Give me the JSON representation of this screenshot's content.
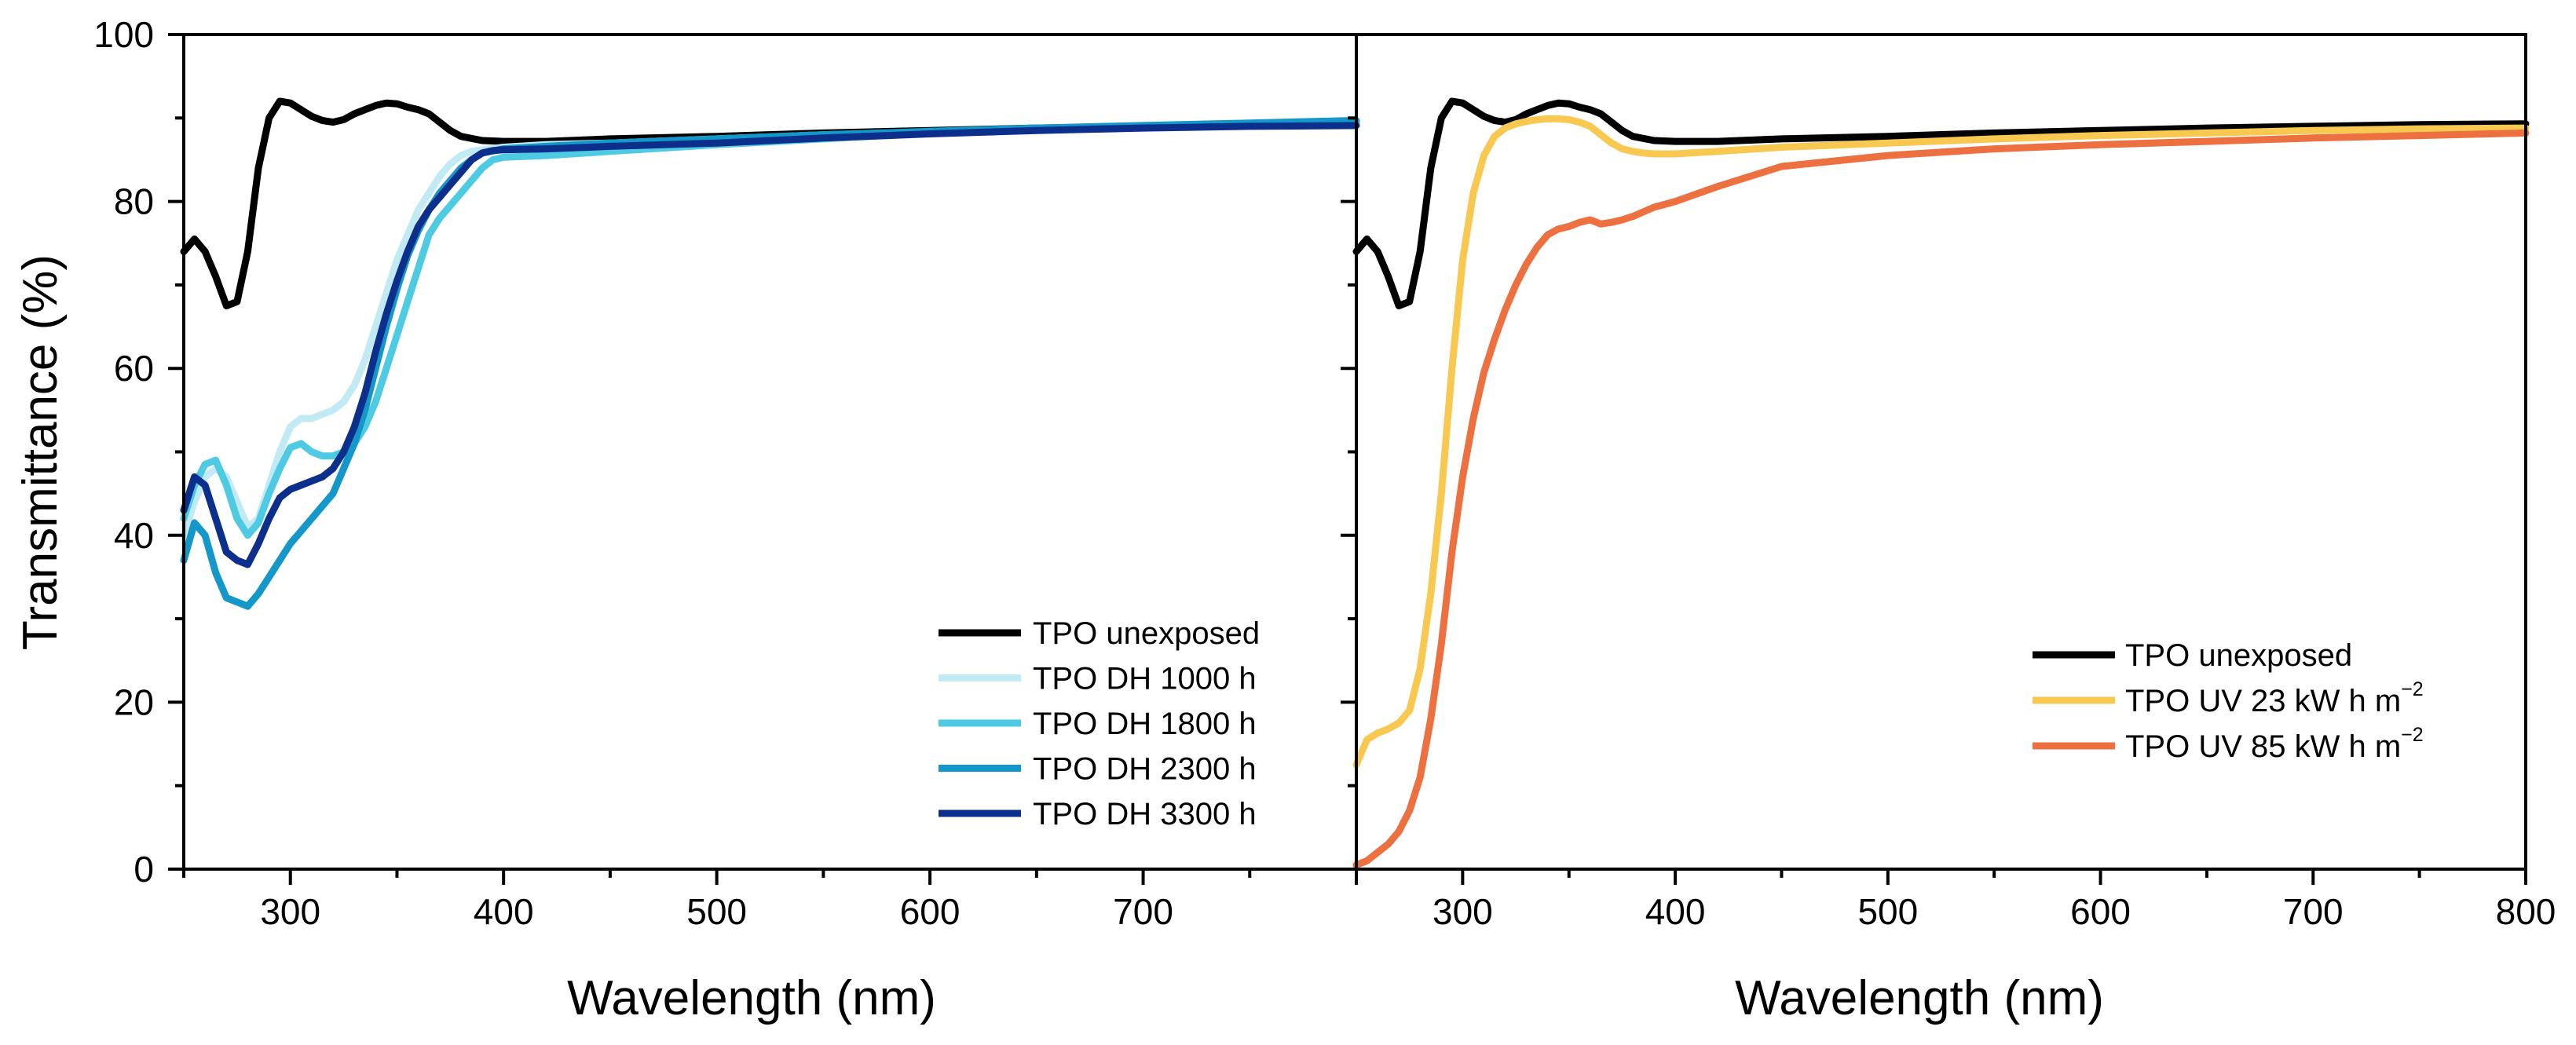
{
  "chart_data": [
    {
      "type": "line",
      "panel": "left",
      "xlabel": "Wavelength (nm)",
      "ylabel": "Transmittance (%)",
      "xlim": [
        250,
        800
      ],
      "ylim": [
        0,
        100
      ],
      "xticks": [
        300,
        400,
        500,
        600,
        700
      ],
      "yticks": [
        0,
        20,
        40,
        60,
        80,
        100
      ],
      "legend_position": "bottom-right",
      "series": [
        {
          "name": "TPO unexposed",
          "color": "#000000",
          "x": [
            250,
            255,
            260,
            265,
            270,
            275,
            280,
            285,
            290,
            295,
            300,
            305,
            310,
            315,
            320,
            325,
            330,
            335,
            340,
            345,
            350,
            355,
            360,
            365,
            370,
            375,
            380,
            390,
            400,
            420,
            450,
            500,
            550,
            600,
            650,
            700,
            750,
            800
          ],
          "y": [
            74,
            75.5,
            74,
            71,
            67.5,
            68,
            74,
            84,
            90,
            92,
            91.8,
            91,
            90.2,
            89.7,
            89.5,
            89.8,
            90.5,
            91,
            91.5,
            91.8,
            91.7,
            91.3,
            91,
            90.5,
            89.5,
            88.5,
            87.8,
            87.3,
            87.2,
            87.2,
            87.5,
            87.8,
            88.2,
            88.5,
            88.8,
            89,
            89.2,
            89.3
          ]
        },
        {
          "name": "TPO DH 1000 h",
          "color": "#c2eaf5",
          "x": [
            250,
            255,
            260,
            265,
            270,
            275,
            280,
            285,
            290,
            295,
            300,
            305,
            310,
            315,
            320,
            325,
            330,
            335,
            340,
            345,
            350,
            355,
            360,
            365,
            370,
            375,
            380,
            385,
            390,
            400,
            420,
            450,
            500,
            550,
            600,
            650,
            700,
            750,
            800
          ],
          "y": [
            40,
            44,
            47,
            48,
            47,
            44,
            41,
            42,
            46,
            50,
            53,
            54,
            54,
            54.5,
            55,
            56,
            58,
            61,
            65,
            69,
            73,
            76,
            79,
            81,
            83,
            84.5,
            85.5,
            86,
            86.2,
            86.5,
            86.8,
            87,
            87.5,
            88,
            88.3,
            88.6,
            88.9,
            89.1,
            89.3
          ]
        },
        {
          "name": "TPO DH 1800 h",
          "color": "#4ecbe3",
          "x": [
            250,
            255,
            260,
            265,
            270,
            275,
            280,
            285,
            290,
            295,
            300,
            305,
            310,
            315,
            320,
            325,
            330,
            335,
            340,
            345,
            350,
            355,
            360,
            365,
            370,
            375,
            380,
            385,
            390,
            395,
            400,
            420,
            450,
            500,
            550,
            600,
            650,
            700,
            750,
            800
          ],
          "y": [
            42,
            46,
            48.5,
            49,
            46,
            42,
            40,
            41.5,
            45,
            48,
            50.5,
            51,
            50,
            49.5,
            49.5,
            50,
            51,
            53,
            56,
            60,
            64,
            68,
            72,
            76,
            78,
            79.5,
            81,
            82.5,
            84,
            85,
            85.3,
            85.5,
            86,
            86.8,
            87.5,
            88.2,
            88.6,
            89,
            89.3,
            89.5
          ]
        },
        {
          "name": "TPO DH 2300 h",
          "color": "#1497c9",
          "x": [
            250,
            255,
            260,
            265,
            270,
            275,
            280,
            285,
            290,
            295,
            300,
            305,
            310,
            315,
            320,
            325,
            330,
            335,
            340,
            345,
            350,
            355,
            360,
            365,
            370,
            375,
            380,
            385,
            390,
            400,
            420,
            450,
            500,
            550,
            600,
            650,
            700,
            750,
            800
          ],
          "y": [
            37,
            41.5,
            40,
            35.5,
            32.5,
            32,
            31.5,
            33,
            35,
            37,
            39,
            40.5,
            42,
            43.5,
            45,
            48,
            51,
            55,
            60,
            65,
            69.5,
            73.5,
            76.5,
            79,
            81,
            82.5,
            84,
            85,
            85.8,
            86.3,
            86.6,
            87,
            87.5,
            88,
            88.4,
            88.8,
            89.1,
            89.4,
            89.7
          ]
        },
        {
          "name": "TPO DH 3300 h",
          "color": "#0d2f8c",
          "x": [
            250,
            255,
            260,
            265,
            270,
            275,
            280,
            285,
            290,
            295,
            300,
            305,
            310,
            315,
            320,
            325,
            330,
            335,
            340,
            345,
            350,
            355,
            360,
            365,
            370,
            375,
            380,
            385,
            390,
            395,
            400,
            420,
            450,
            500,
            550,
            600,
            650,
            700,
            750,
            800
          ],
          "y": [
            43,
            47,
            46,
            42,
            38,
            37,
            36.5,
            39,
            42,
            44.5,
            45.5,
            46,
            46.5,
            47,
            48,
            50,
            53,
            57,
            62,
            66.5,
            70.5,
            74,
            77,
            79,
            80.5,
            82,
            83.5,
            85,
            85.8,
            86.1,
            86.2,
            86.3,
            86.6,
            87,
            87.6,
            88.1,
            88.5,
            88.8,
            89,
            89.1
          ]
        }
      ]
    },
    {
      "type": "line",
      "panel": "right",
      "xlabel": "Wavelength (nm)",
      "ylabel": "",
      "xlim": [
        250,
        800
      ],
      "ylim": [
        0,
        100
      ],
      "xticks": [
        300,
        400,
        500,
        600,
        700,
        800
      ],
      "yticks": [
        0,
        20,
        40,
        60,
        80,
        100
      ],
      "legend_position": "center-right",
      "series": [
        {
          "name": "TPO unexposed",
          "color": "#000000",
          "x": [
            250,
            255,
            260,
            265,
            270,
            275,
            280,
            285,
            290,
            295,
            300,
            305,
            310,
            315,
            320,
            325,
            330,
            335,
            340,
            345,
            350,
            355,
            360,
            365,
            370,
            375,
            380,
            390,
            400,
            420,
            450,
            500,
            550,
            600,
            650,
            700,
            750,
            800
          ],
          "y": [
            74,
            75.5,
            74,
            71,
            67.5,
            68,
            74,
            84,
            90,
            92,
            91.8,
            91,
            90.2,
            89.7,
            89.5,
            89.8,
            90.5,
            91,
            91.5,
            91.8,
            91.7,
            91.3,
            91,
            90.5,
            89.5,
            88.5,
            87.8,
            87.3,
            87.2,
            87.2,
            87.5,
            87.8,
            88.2,
            88.5,
            88.8,
            89,
            89.2,
            89.3
          ]
        },
        {
          "name": "TPO UV 23 kW h m⁻²",
          "color": "#f8c850",
          "x": [
            250,
            255,
            260,
            265,
            270,
            275,
            280,
            285,
            290,
            295,
            300,
            305,
            310,
            315,
            320,
            325,
            330,
            335,
            340,
            345,
            350,
            355,
            360,
            365,
            370,
            375,
            380,
            385,
            390,
            400,
            420,
            450,
            500,
            550,
            600,
            650,
            700,
            750,
            800
          ],
          "y": [
            12.5,
            15.5,
            16.3,
            16.8,
            17.5,
            19,
            24,
            33,
            45,
            60,
            73,
            81,
            85.5,
            87.8,
            88.8,
            89.3,
            89.6,
            89.8,
            89.9,
            89.9,
            89.8,
            89.5,
            89,
            88,
            87,
            86.3,
            86,
            85.8,
            85.7,
            85.7,
            86,
            86.5,
            87,
            87.5,
            87.9,
            88.2,
            88.5,
            88.7,
            88.8
          ]
        },
        {
          "name": "TPO UV 85 kW h m⁻²",
          "color": "#ec7040",
          "x": [
            250,
            255,
            260,
            265,
            270,
            275,
            280,
            285,
            290,
            295,
            300,
            305,
            310,
            315,
            320,
            325,
            330,
            335,
            340,
            345,
            350,
            355,
            360,
            365,
            370,
            375,
            380,
            390,
            400,
            420,
            450,
            500,
            550,
            600,
            650,
            700,
            750,
            800
          ],
          "y": [
            0.5,
            1,
            2,
            3,
            4.5,
            7,
            11,
            18,
            27,
            38,
            47,
            54,
            59.5,
            63.5,
            67,
            70,
            72.5,
            74.5,
            76,
            76.7,
            77,
            77.5,
            77.8,
            77.3,
            77.5,
            77.8,
            78.2,
            79.3,
            80,
            81.8,
            84.2,
            85.5,
            86.3,
            86.8,
            87.2,
            87.6,
            87.9,
            88.2
          ]
        }
      ]
    }
  ]
}
